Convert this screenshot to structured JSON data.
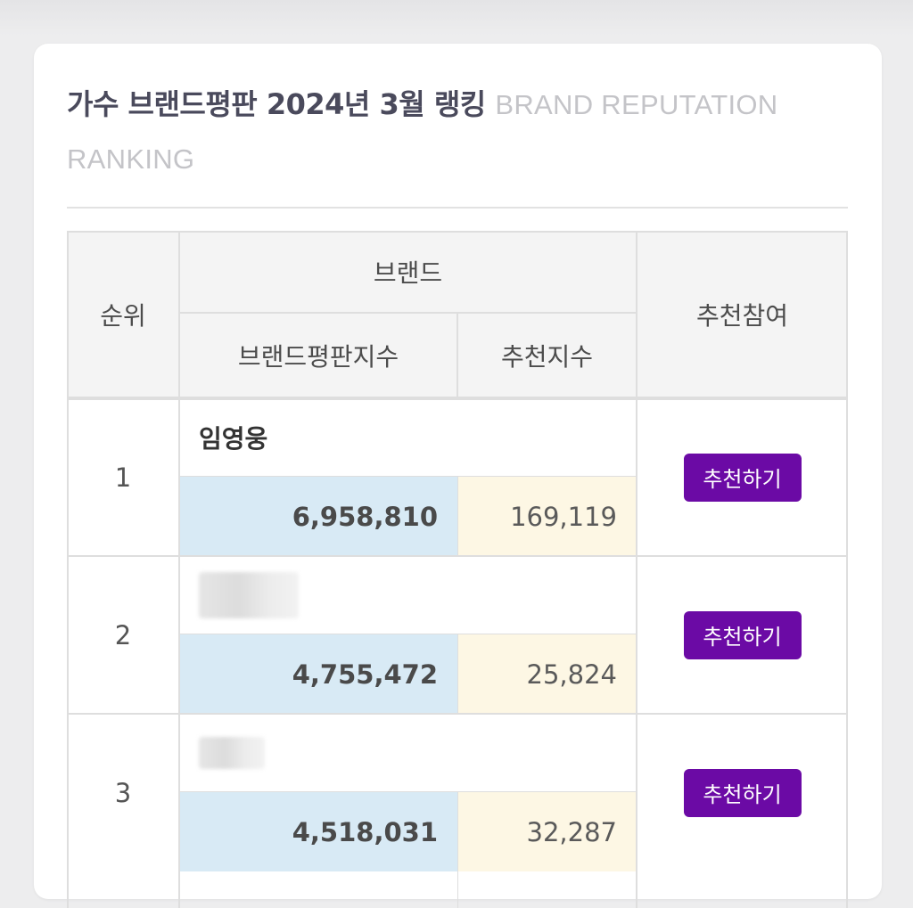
{
  "title": {
    "main": "가수 브랜드평판 2024년 3월 랭킹",
    "sub": "BRAND REPUTATION RANKING"
  },
  "table": {
    "headers": {
      "rank": "순위",
      "brand": "브랜드",
      "brand_index": "브랜드평판지수",
      "recommend_index": "추천지수",
      "recommend_join": "추천참여"
    },
    "rows": [
      {
        "rank": "1",
        "name": "임영웅",
        "brand_index": "6,958,810",
        "recommend_index": "169,119",
        "button": "추천하기"
      },
      {
        "rank": "2",
        "name": "",
        "brand_index": "4,755,472",
        "recommend_index": "25,824",
        "button": "추천하기"
      },
      {
        "rank": "3",
        "name": "",
        "brand_index": "4,518,031",
        "recommend_index": "32,287",
        "button": "추천하기"
      }
    ]
  },
  "colors": {
    "button": "#6b0aa5",
    "brand_index_bg": "#d8eaf5",
    "recommend_index_bg": "#fdf7e4"
  }
}
